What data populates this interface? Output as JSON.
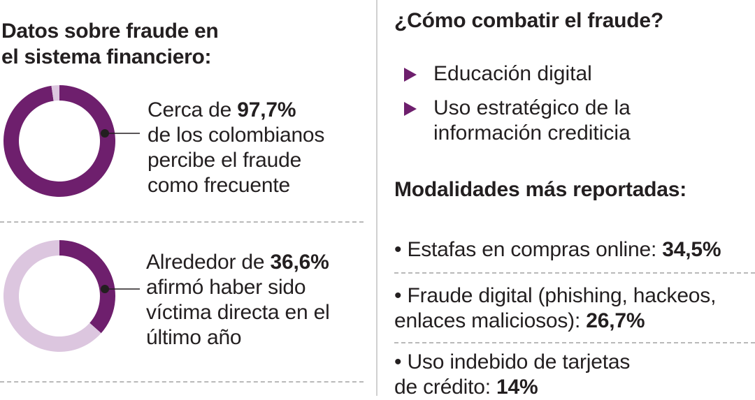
{
  "left": {
    "title_line1": "Datos sobre fraude en",
    "title_line2": "el sistema financiero:"
  },
  "stats": [
    {
      "prefix": "Cerca de ",
      "value_text": "97,7%",
      "lines": [
        "de los colombianos",
        "percibe el fraude",
        "como frecuente"
      ]
    },
    {
      "prefix": "Alrededor de ",
      "value_text": "36,6%",
      "lines": [
        "afirmó haber sido",
        "víctima directa en el",
        "último año"
      ]
    }
  ],
  "right": {
    "combat_title": "¿Cómo combatir el fraude?",
    "combat_items": [
      {
        "line1": "Educación digital",
        "line2": ""
      },
      {
        "line1": "Uso estratégico de la",
        "line2": "información crediticia"
      }
    ],
    "modalities_title": "Modalidades más reportadas:",
    "modalities": [
      {
        "line1": "• Estafas en compras online: ",
        "value": "34,5%",
        "line2": ""
      },
      {
        "line1": "• Fraude digital (phishing, hackeos,",
        "line2": "enlaces maliciosos): ",
        "value": "26,7%"
      },
      {
        "line1": "• Uso indebido de tarjetas",
        "line2": "de crédito: ",
        "value": "14%"
      }
    ]
  },
  "chart_data": [
    {
      "type": "pie",
      "subtype": "donut",
      "labels": [
        "percibe el fraude como frecuente",
        "resto"
      ],
      "values": [
        97.7,
        2.3
      ],
      "colors": [
        "#6e1f6d",
        "#dcc6df"
      ]
    },
    {
      "type": "pie",
      "subtype": "donut",
      "labels": [
        "víctima directa en el último año",
        "resto"
      ],
      "values": [
        36.6,
        63.4
      ],
      "colors": [
        "#6e1f6d",
        "#dcc6df"
      ]
    }
  ],
  "colors": {
    "accent": "#6e1f6d",
    "accent_light": "#dcc6df",
    "text": "#231f20",
    "divider": "#b9b9b9"
  }
}
